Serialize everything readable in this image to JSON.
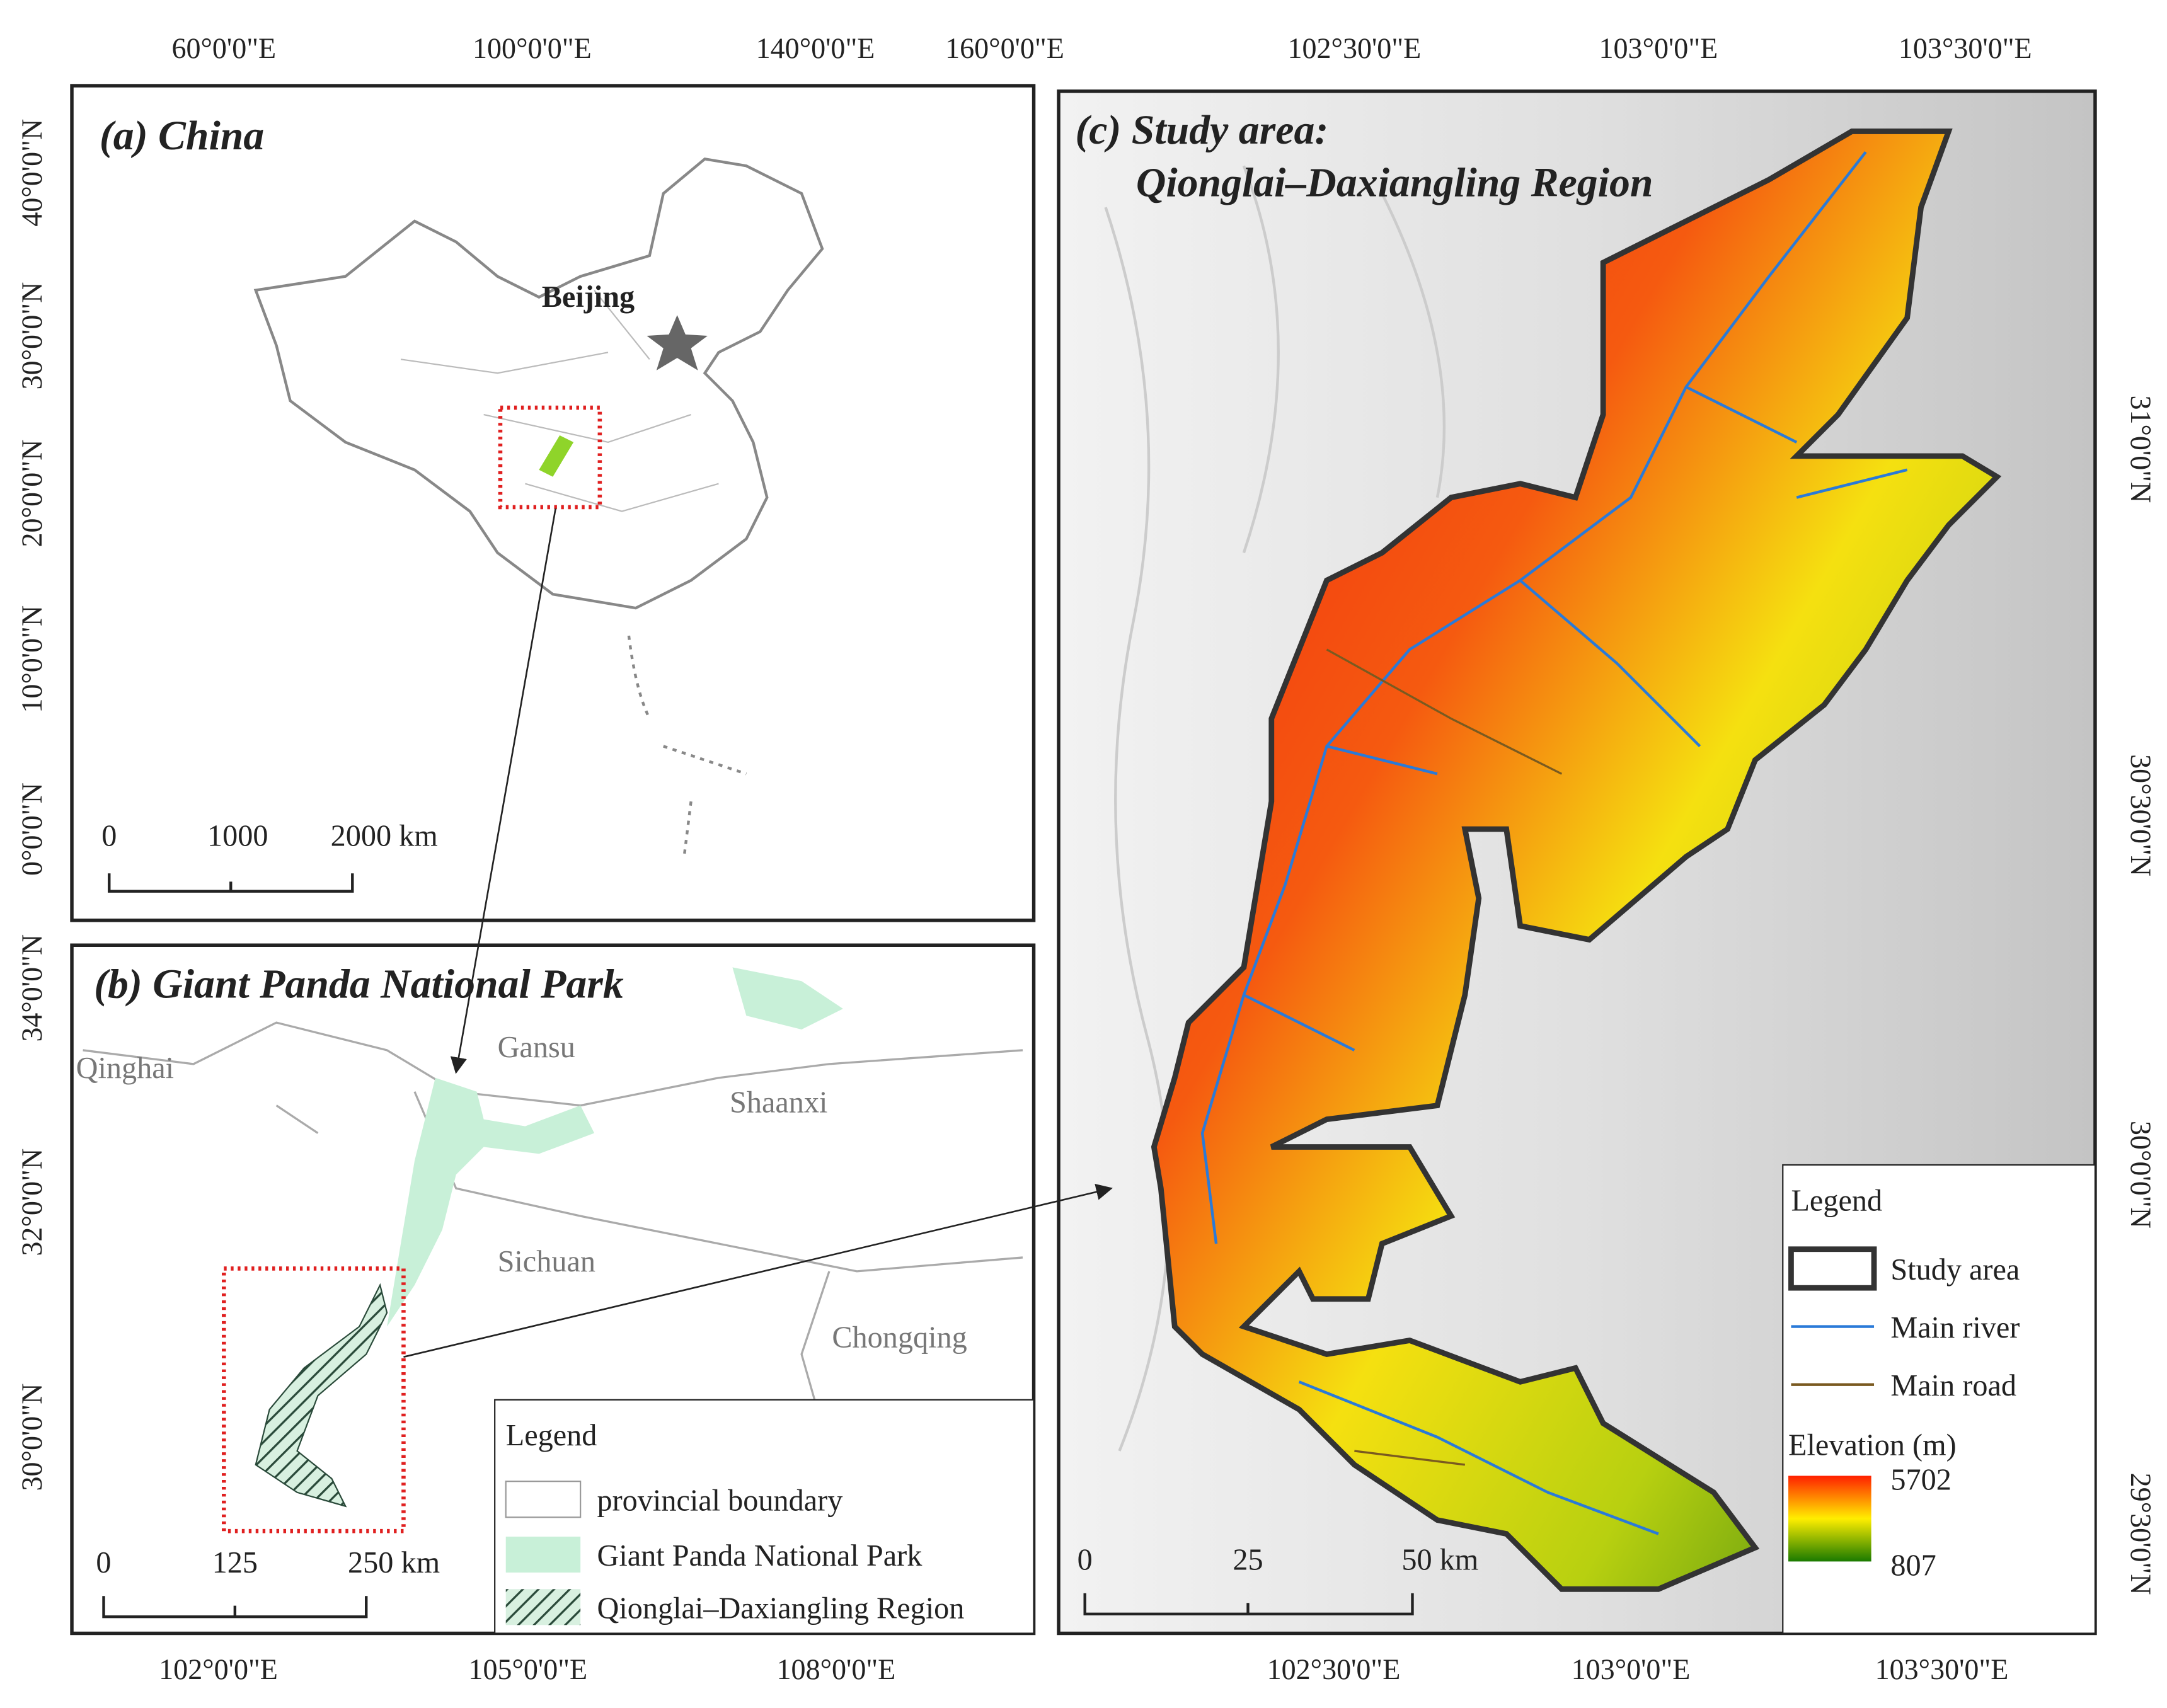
{
  "panel_a": {
    "title": "(a) China",
    "top_labels": [
      "60°0'0\"E",
      "100°0'0\"E",
      "140°0'0\"E",
      "160°0'0\"E"
    ],
    "left_labels": [
      "40°0'0\"N",
      "30°0'0\"N",
      "20°0'0\"N",
      "10°0'0\"N",
      "0°0'0\"N"
    ],
    "place": "Beijing",
    "scale": [
      "0",
      "1000",
      "2000 km"
    ]
  },
  "panel_b": {
    "title": "(b) Giant Panda National Park",
    "left_labels": [
      "34°0'0\"N",
      "32°0'0\"N",
      "30°0'0\"N"
    ],
    "bottom_labels": [
      "102°0'0\"E",
      "105°0'0\"E",
      "108°0'0\"E"
    ],
    "places": [
      "Qinghai",
      "Gansu",
      "Shaanxi",
      "Sichuan",
      "Chongqing"
    ],
    "scale": [
      "0",
      "125",
      "250 km"
    ],
    "legend": {
      "title": "Legend",
      "items": [
        "provincial boundary",
        "Giant Panda National Park",
        "Qionglai–Daxiangling Region"
      ]
    }
  },
  "panel_c": {
    "title_lines": [
      "(c) Study area:",
      "Qionglai–Daxiangling Region"
    ],
    "top_labels": [
      "102°30'0\"E",
      "103°0'0\"E",
      "103°30'0\"E"
    ],
    "bottom_labels": [
      "102°30'0\"E",
      "103°0'0\"E",
      "103°30'0\"E"
    ],
    "right_labels": [
      "31°0'0\"N",
      "30°30'0\"N",
      "30°0'0\"N",
      "29°30'0\"N"
    ],
    "scale": [
      "0",
      "25",
      "50 km"
    ],
    "legend": {
      "title": "Legend",
      "items": [
        "Study area",
        "Main river",
        "Main road"
      ],
      "elevation_title": "Elevation (m)",
      "elevation_max": 5702,
      "elevation_min": 807
    }
  }
}
